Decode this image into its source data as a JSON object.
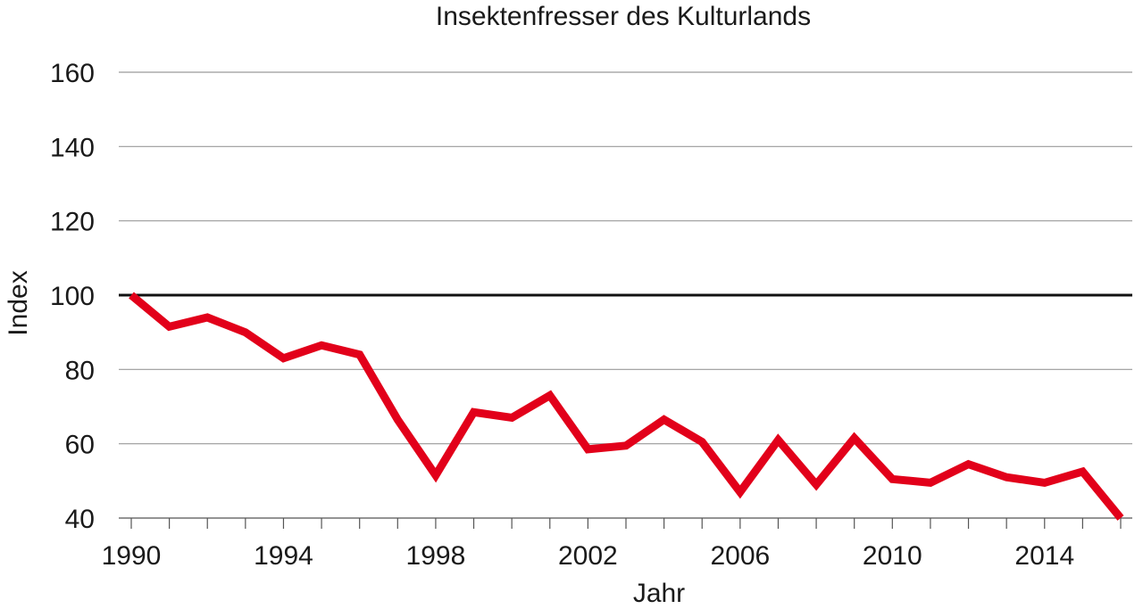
{
  "chart_data": {
    "type": "line",
    "title": "Insektenfresser des Kulturlands",
    "xlabel": "Jahr",
    "ylabel": "Index",
    "xlim": [
      1990,
      2016
    ],
    "ylim": [
      40,
      160
    ],
    "yticks": [
      40,
      60,
      80,
      100,
      120,
      140,
      160
    ],
    "xticks_labeled": [
      1990,
      1994,
      1998,
      2002,
      2006,
      2010,
      2014
    ],
    "reference_line": 100,
    "grid": true,
    "legend": "none",
    "color": "#e2001a",
    "series": [
      {
        "x": [
          1990,
          1991,
          1992,
          1993,
          1994,
          1995,
          1996,
          1997,
          1998,
          1999,
          2000,
          2001,
          2002,
          2003,
          2004,
          2005,
          2006,
          2007,
          2008,
          2009,
          2010,
          2011,
          2012,
          2013,
          2014,
          2015,
          2016
        ],
        "values": [
          100,
          91.5,
          94,
          90,
          83,
          86.5,
          84,
          66.5,
          51.5,
          68.5,
          67,
          73,
          58.5,
          59.5,
          66.5,
          60.5,
          47,
          61,
          49,
          61.5,
          50.5,
          49.5,
          54.5,
          51,
          49.5,
          52.5,
          40
        ]
      }
    ]
  }
}
